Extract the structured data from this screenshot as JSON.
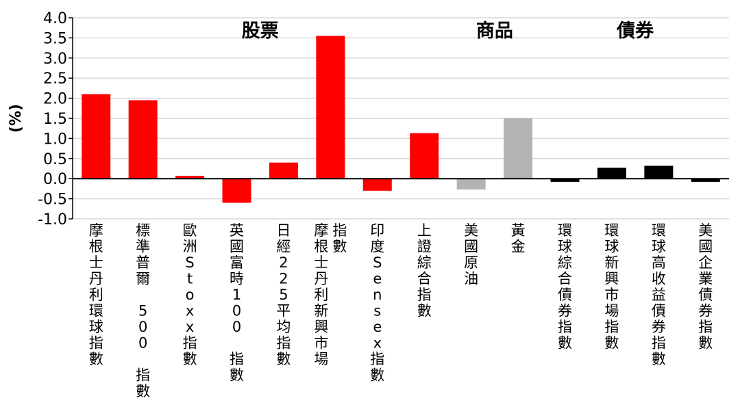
{
  "chart_data": {
    "type": "bar",
    "ylabel": "(%)",
    "ylim": [
      -1.0,
      4.0
    ],
    "yticks": [
      -1.0,
      -0.5,
      0.0,
      0.5,
      1.0,
      1.5,
      2.0,
      2.5,
      3.0,
      3.5,
      4.0
    ],
    "ytick_labels": [
      "-1.0",
      "-0.5",
      "0.0",
      "0.5",
      "1.0",
      "1.5",
      "2.0",
      "2.5",
      "3.0",
      "3.5",
      "4.0"
    ],
    "grid": true,
    "colors": {
      "stocks": "#ff0000",
      "commodities": "#b3b3b3",
      "bonds": "#000000",
      "grid": "#d9d9d9",
      "axis": "#000000"
    },
    "groups": [
      {
        "label": "股票",
        "start": 0,
        "end": 7,
        "color_key": "stocks"
      },
      {
        "label": "商品",
        "start": 8,
        "end": 9,
        "color_key": "commodities"
      },
      {
        "label": "債券",
        "start": 10,
        "end": 13,
        "color_key": "bonds"
      }
    ],
    "categories": [
      "摩根士丹利環球指數",
      "標準普爾 500 指數",
      "歐洲Stoxx指數",
      "英國富時100 指數",
      "日經225平均指數",
      "摩根士丹利新興市場指數",
      "印度Sensex指數",
      "上證綜合指數",
      "美國原油",
      "黃金",
      "環球綜合債券指數",
      "環球新興市場指數",
      "環球高收益債券指數",
      "美國企業債券指數"
    ],
    "category_lines": [
      [
        "摩根士丹利環球指數"
      ],
      [
        "標準普爾 500 指數"
      ],
      [
        "歐洲Stoxx指數"
      ],
      [
        "英國富時100 指數"
      ],
      [
        "日經225平均指數"
      ],
      [
        "摩根士丹利新興市場",
        "指數"
      ],
      [
        "印度Sensex指數"
      ],
      [
        "上證綜合指數"
      ],
      [
        "美國原油"
      ],
      [
        "黃金"
      ],
      [
        "環球綜合債券指數"
      ],
      [
        "環球新興市場指數"
      ],
      [
        "環球高收益債券指數"
      ],
      [
        "美國企業債券指數"
      ]
    ],
    "values": [
      2.1,
      1.95,
      0.07,
      -0.6,
      0.4,
      3.55,
      -0.3,
      1.13,
      -0.27,
      1.5,
      -0.08,
      0.27,
      0.32,
      -0.08
    ]
  }
}
